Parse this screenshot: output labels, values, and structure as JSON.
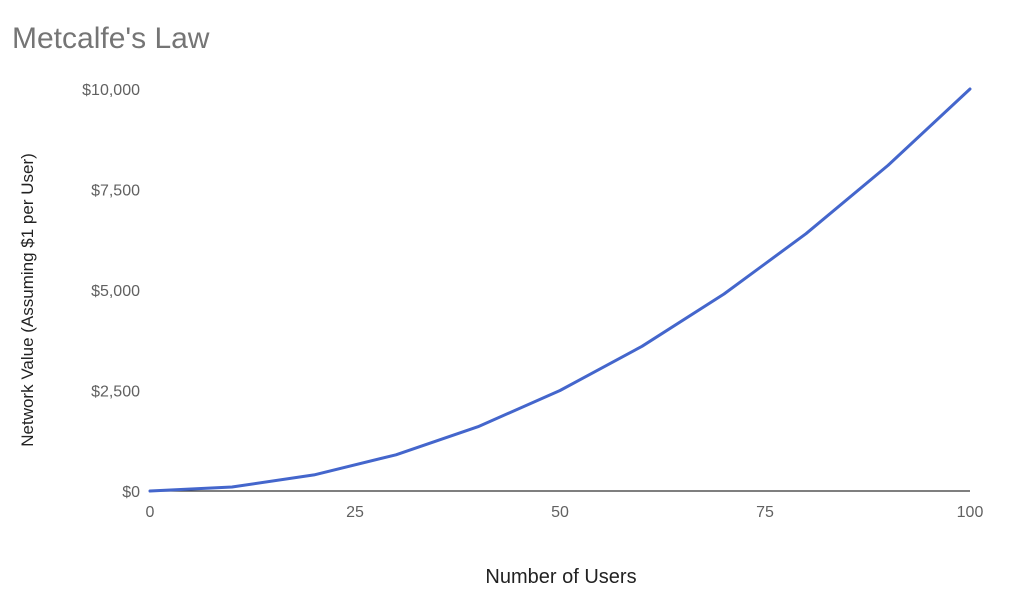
{
  "chart_data": {
    "type": "line",
    "title": "Metcalfe's Law",
    "xlabel": "Number of Users",
    "ylabel": "Network Value (Assuming $1 per User)",
    "xlim": [
      0,
      100
    ],
    "ylim": [
      0,
      10000
    ],
    "x_ticks": [
      "0",
      "25",
      "50",
      "75",
      "100"
    ],
    "x_tick_values": [
      0,
      25,
      50,
      75,
      100
    ],
    "y_ticks": [
      "$0",
      "$2,500",
      "$5,000",
      "$7,500",
      "$10,000"
    ],
    "y_tick_values": [
      0,
      2500,
      5000,
      7500,
      10000
    ],
    "grid": false,
    "legend": "none",
    "series": [
      {
        "color": "#4466cc",
        "x": [
          0,
          10,
          20,
          30,
          40,
          50,
          60,
          70,
          80,
          90,
          100
        ],
        "values": [
          0,
          100,
          400,
          900,
          1600,
          2500,
          3600,
          4900,
          6400,
          8100,
          10000
        ]
      }
    ]
  }
}
